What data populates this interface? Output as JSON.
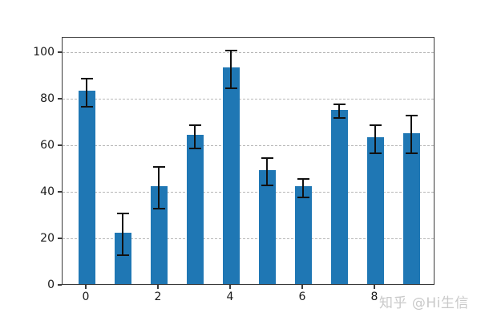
{
  "watermark": {
    "text": "知乎 @Hi生信",
    "color": "#c9c9c9"
  },
  "chart_data": {
    "type": "bar",
    "x": [
      0,
      1,
      2,
      3,
      4,
      5,
      6,
      7,
      8,
      9
    ],
    "values": [
      83,
      22,
      42,
      64,
      93,
      49,
      42,
      75,
      63,
      65
    ],
    "errors": [
      6,
      9,
      9,
      5,
      8,
      6,
      4,
      3,
      6,
      8
    ],
    "title": "",
    "xlabel": "",
    "ylabel": "",
    "xtick_labels": [
      "0",
      "2",
      "4",
      "6",
      "8"
    ],
    "xtick_positions": [
      0,
      2,
      4,
      6,
      8
    ],
    "ytick_labels": [
      "0",
      "20",
      "40",
      "60",
      "80",
      "100"
    ],
    "ytick_values": [
      0,
      20,
      40,
      60,
      80,
      100
    ],
    "ylim": [
      0,
      106.5
    ],
    "xlim": [
      -0.67,
      9.67
    ],
    "bar_color": "#1f77b4",
    "error_bar_color": "#111111",
    "grid": {
      "axis": "y",
      "style": "dashed",
      "color": "#b8b8b8"
    },
    "spines": "box"
  }
}
